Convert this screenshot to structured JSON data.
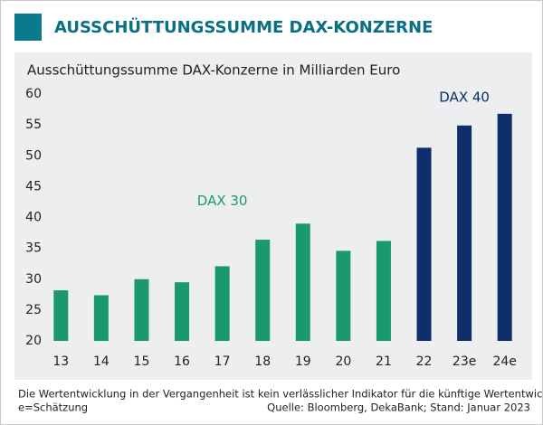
{
  "chart_data": {
    "type": "bar",
    "title": "AUSSCHÜTTUNGSSUMME DAX-KONZERNE",
    "subtitle": "Ausschüttungssumme DAX-Konzerne in Milliarden Euro",
    "categories": [
      "13",
      "14",
      "15",
      "16",
      "17",
      "18",
      "19",
      "20",
      "21",
      "22",
      "23e",
      "24e"
    ],
    "series": [
      {
        "name": "DAX 30",
        "color": "#1a9a6c",
        "values": [
          28.2,
          27.4,
          30.0,
          29.5,
          32.1,
          36.4,
          39.0,
          34.6,
          36.2,
          null,
          null,
          null
        ]
      },
      {
        "name": "DAX 40",
        "color": "#0d2d6b",
        "values": [
          null,
          null,
          null,
          null,
          null,
          null,
          null,
          null,
          null,
          51.3,
          54.9,
          56.8
        ]
      }
    ],
    "ylim": [
      20,
      60
    ],
    "yticks": [
      20,
      25,
      30,
      35,
      40,
      45,
      50,
      55,
      60
    ],
    "note": "Die Wertentwicklung in der Vergangenheit ist kein verlässlicher Indikator für die künftige Wertentwicklung.",
    "estimate_note": "e=Schätzung",
    "source": "Quelle: Bloomberg, DekaBank; Stand: Januar 2023"
  }
}
